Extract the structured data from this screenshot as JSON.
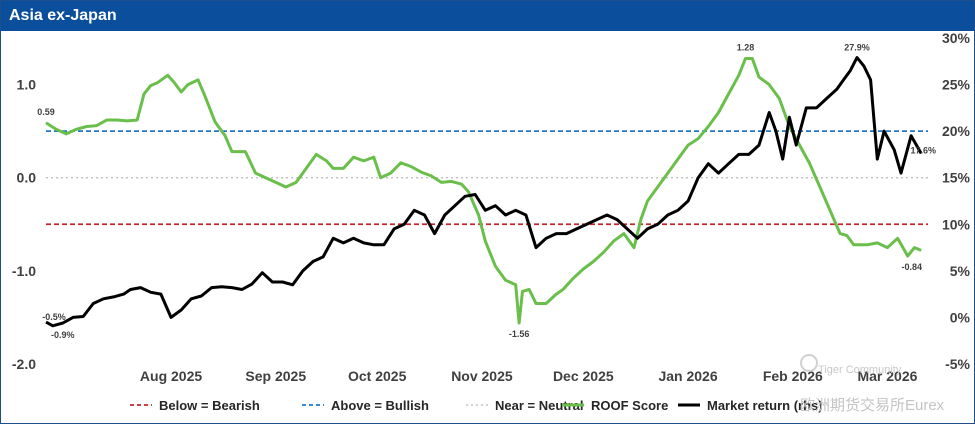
{
  "header": {
    "title": "Asia ex-Japan"
  },
  "chart_data": {
    "type": "line",
    "title": "Asia ex-Japan",
    "x_range": [
      "2025-07-09",
      "2026-03-27"
    ],
    "month_labels": [
      {
        "label": "Aug 2025",
        "date": "2025-08-15"
      },
      {
        "label": "Sep 2025",
        "date": "2025-09-15"
      },
      {
        "label": "Oct 2025",
        "date": "2025-10-15"
      },
      {
        "label": "Nov 2025",
        "date": "2025-11-15"
      },
      {
        "label": "Dec 2025",
        "date": "2025-12-15"
      },
      {
        "label": "Jan 2026",
        "date": "2026-01-15"
      },
      {
        "label": "Feb 2026",
        "date": "2026-02-15"
      },
      {
        "label": "Mar 2026",
        "date": "2026-03-15"
      }
    ],
    "left_axis": {
      "ylim": [
        -2.0,
        1.5
      ],
      "ticks": [
        1.0,
        0.0,
        -1.0,
        -2.0
      ],
      "tick_labels": [
        "1.0",
        "0.0",
        "-1.0",
        "-2.0"
      ]
    },
    "right_axis": {
      "ylim": [
        -5,
        30
      ],
      "ticks": [
        30,
        25,
        20,
        15,
        10,
        5,
        0,
        -5
      ],
      "tick_labels": [
        "30%",
        "25%",
        "20%",
        "15%",
        "10%",
        "5%",
        "0%",
        "-5%"
      ]
    },
    "thresholds": [
      {
        "name": "Below = Bearish",
        "value": -0.5,
        "color": "#c0282d",
        "style": "dashed"
      },
      {
        "name": "Above = Bullish",
        "value": 0.5,
        "color": "#1f78c8",
        "style": "dashed"
      },
      {
        "name": "Near = Neutral",
        "value": 0.0,
        "color": "#b8b8b8",
        "style": "dotted"
      }
    ],
    "series": [
      {
        "name": "ROOF Score",
        "axis": "left",
        "color": "#6abf4b",
        "points": [
          [
            "2025-07-09",
            0.59
          ],
          [
            "2025-07-12",
            0.52
          ],
          [
            "2025-07-15",
            0.47
          ],
          [
            "2025-07-18",
            0.52
          ],
          [
            "2025-07-21",
            0.55
          ],
          [
            "2025-07-24",
            0.56
          ],
          [
            "2025-07-27",
            0.62
          ],
          [
            "2025-07-30",
            0.62
          ],
          [
            "2025-08-02",
            0.61
          ],
          [
            "2025-08-05",
            0.62
          ],
          [
            "2025-08-07",
            0.9
          ],
          [
            "2025-08-09",
            0.99
          ],
          [
            "2025-08-11",
            1.02
          ],
          [
            "2025-08-14",
            1.1
          ],
          [
            "2025-08-16",
            1.02
          ],
          [
            "2025-08-18",
            0.92
          ],
          [
            "2025-08-20",
            1.0
          ],
          [
            "2025-08-23",
            1.05
          ],
          [
            "2025-08-25",
            0.88
          ],
          [
            "2025-08-28",
            0.6
          ],
          [
            "2025-08-31",
            0.45
          ],
          [
            "2025-09-02",
            0.28
          ],
          [
            "2025-09-06",
            0.28
          ],
          [
            "2025-09-09",
            0.05
          ],
          [
            "2025-09-12",
            0.0
          ],
          [
            "2025-09-15",
            -0.05
          ],
          [
            "2025-09-18",
            -0.1
          ],
          [
            "2025-09-21",
            -0.05
          ],
          [
            "2025-09-24",
            0.1
          ],
          [
            "2025-09-27",
            0.25
          ],
          [
            "2025-09-30",
            0.18
          ],
          [
            "2025-10-02",
            0.1
          ],
          [
            "2025-10-05",
            0.1
          ],
          [
            "2025-10-08",
            0.22
          ],
          [
            "2025-10-11",
            0.18
          ],
          [
            "2025-10-14",
            0.22
          ],
          [
            "2025-10-16",
            0.0
          ],
          [
            "2025-10-19",
            0.05
          ],
          [
            "2025-10-22",
            0.16
          ],
          [
            "2025-10-25",
            0.12
          ],
          [
            "2025-10-28",
            0.06
          ],
          [
            "2025-10-31",
            0.02
          ],
          [
            "2025-11-03",
            -0.05
          ],
          [
            "2025-11-06",
            -0.04
          ],
          [
            "2025-11-09",
            -0.07
          ],
          [
            "2025-11-11",
            -0.15
          ],
          [
            "2025-11-14",
            -0.4
          ],
          [
            "2025-11-16",
            -0.68
          ],
          [
            "2025-11-19",
            -0.95
          ],
          [
            "2025-11-22",
            -1.1
          ],
          [
            "2025-11-25",
            -1.15
          ],
          [
            "2025-11-26",
            -1.56
          ],
          [
            "2025-11-27",
            -1.22
          ],
          [
            "2025-11-29",
            -1.2
          ],
          [
            "2025-12-01",
            -1.35
          ],
          [
            "2025-12-04",
            -1.35
          ],
          [
            "2025-12-07",
            -1.25
          ],
          [
            "2025-12-09",
            -1.2
          ],
          [
            "2025-12-12",
            -1.08
          ],
          [
            "2025-12-15",
            -0.98
          ],
          [
            "2025-12-18",
            -0.9
          ],
          [
            "2025-12-21",
            -0.8
          ],
          [
            "2025-12-24",
            -0.68
          ],
          [
            "2025-12-27",
            -0.6
          ],
          [
            "2025-12-30",
            -0.75
          ],
          [
            "2026-01-01",
            -0.45
          ],
          [
            "2026-01-03",
            -0.25
          ],
          [
            "2026-01-06",
            -0.1
          ],
          [
            "2026-01-09",
            0.05
          ],
          [
            "2026-01-12",
            0.2
          ],
          [
            "2026-01-15",
            0.35
          ],
          [
            "2026-01-18",
            0.42
          ],
          [
            "2026-01-21",
            0.55
          ],
          [
            "2026-01-24",
            0.7
          ],
          [
            "2026-01-27",
            0.9
          ],
          [
            "2026-01-30",
            1.1
          ],
          [
            "2026-02-01",
            1.28
          ],
          [
            "2026-02-03",
            1.28
          ],
          [
            "2026-02-05",
            1.08
          ],
          [
            "2026-02-08",
            1.0
          ],
          [
            "2026-02-11",
            0.85
          ],
          [
            "2026-02-14",
            0.55
          ],
          [
            "2026-02-17",
            0.35
          ],
          [
            "2026-02-20",
            0.15
          ],
          [
            "2026-02-23",
            -0.1
          ],
          [
            "2026-02-26",
            -0.35
          ],
          [
            "2026-03-01",
            -0.6
          ],
          [
            "2026-03-03",
            -0.62
          ],
          [
            "2026-03-05",
            -0.72
          ],
          [
            "2026-03-09",
            -0.72
          ],
          [
            "2026-03-12",
            -0.7
          ],
          [
            "2026-03-15",
            -0.75
          ],
          [
            "2026-03-18",
            -0.65
          ],
          [
            "2026-03-21",
            -0.84
          ],
          [
            "2026-03-23",
            -0.75
          ],
          [
            "2026-03-25",
            -0.78
          ]
        ]
      },
      {
        "name": "Market return (rhs)",
        "axis": "right",
        "color": "#000000",
        "points": [
          [
            "2025-07-09",
            -0.5
          ],
          [
            "2025-07-11",
            -0.9
          ],
          [
            "2025-07-14",
            -0.6
          ],
          [
            "2025-07-17",
            0.0
          ],
          [
            "2025-07-20",
            0.1
          ],
          [
            "2025-07-23",
            1.5
          ],
          [
            "2025-07-26",
            2.0
          ],
          [
            "2025-07-29",
            2.2
          ],
          [
            "2025-08-01",
            2.5
          ],
          [
            "2025-08-03",
            3.0
          ],
          [
            "2025-08-06",
            3.2
          ],
          [
            "2025-08-09",
            2.7
          ],
          [
            "2025-08-12",
            2.5
          ],
          [
            "2025-08-15",
            0.0
          ],
          [
            "2025-08-18",
            0.8
          ],
          [
            "2025-08-21",
            2.0
          ],
          [
            "2025-08-24",
            2.3
          ],
          [
            "2025-08-27",
            3.2
          ],
          [
            "2025-08-30",
            3.3
          ],
          [
            "2025-09-02",
            3.2
          ],
          [
            "2025-09-05",
            3.0
          ],
          [
            "2025-09-08",
            3.6
          ],
          [
            "2025-09-11",
            4.8
          ],
          [
            "2025-09-14",
            3.8
          ],
          [
            "2025-09-17",
            3.8
          ],
          [
            "2025-09-20",
            3.5
          ],
          [
            "2025-09-23",
            5.0
          ],
          [
            "2025-09-26",
            6.0
          ],
          [
            "2025-09-29",
            6.5
          ],
          [
            "2025-10-02",
            8.5
          ],
          [
            "2025-10-05",
            8.0
          ],
          [
            "2025-10-08",
            8.5
          ],
          [
            "2025-10-11",
            8.0
          ],
          [
            "2025-10-14",
            7.8
          ],
          [
            "2025-10-17",
            7.8
          ],
          [
            "2025-10-20",
            9.5
          ],
          [
            "2025-10-23",
            10.0
          ],
          [
            "2025-10-26",
            11.5
          ],
          [
            "2025-10-29",
            11.0
          ],
          [
            "2025-11-01",
            9.0
          ],
          [
            "2025-11-04",
            11.0
          ],
          [
            "2025-11-07",
            12.0
          ],
          [
            "2025-11-10",
            13.0
          ],
          [
            "2025-11-13",
            13.2
          ],
          [
            "2025-11-16",
            11.5
          ],
          [
            "2025-11-19",
            12.0
          ],
          [
            "2025-11-22",
            11.0
          ],
          [
            "2025-11-25",
            11.5
          ],
          [
            "2025-11-28",
            11.0
          ],
          [
            "2025-12-01",
            7.5
          ],
          [
            "2025-12-04",
            8.5
          ],
          [
            "2025-12-07",
            9.0
          ],
          [
            "2025-12-10",
            9.0
          ],
          [
            "2025-12-13",
            9.5
          ],
          [
            "2025-12-16",
            10.0
          ],
          [
            "2025-12-19",
            10.5
          ],
          [
            "2025-12-22",
            11.0
          ],
          [
            "2025-12-25",
            10.5
          ],
          [
            "2025-12-28",
            9.5
          ],
          [
            "2025-12-31",
            8.5
          ],
          [
            "2026-01-03",
            9.5
          ],
          [
            "2026-01-06",
            10.0
          ],
          [
            "2026-01-09",
            11.0
          ],
          [
            "2026-01-12",
            11.5
          ],
          [
            "2026-01-15",
            12.5
          ],
          [
            "2026-01-18",
            15.0
          ],
          [
            "2026-01-21",
            16.5
          ],
          [
            "2026-01-24",
            15.5
          ],
          [
            "2026-01-27",
            16.5
          ],
          [
            "2026-01-30",
            17.5
          ],
          [
            "2026-02-02",
            17.5
          ],
          [
            "2026-02-05",
            18.5
          ],
          [
            "2026-02-08",
            22.0
          ],
          [
            "2026-02-10",
            20.0
          ],
          [
            "2026-02-12",
            17.0
          ],
          [
            "2026-02-14",
            21.5
          ],
          [
            "2026-02-16",
            18.5
          ],
          [
            "2026-02-19",
            22.5
          ],
          [
            "2026-02-22",
            22.5
          ],
          [
            "2026-02-25",
            23.5
          ],
          [
            "2026-02-28",
            24.5
          ],
          [
            "2026-03-02",
            25.5
          ],
          [
            "2026-03-04",
            26.5
          ],
          [
            "2026-03-06",
            27.9
          ],
          [
            "2026-03-08",
            27.0
          ],
          [
            "2026-03-10",
            25.5
          ],
          [
            "2026-03-12",
            17.0
          ],
          [
            "2026-03-14",
            20.0
          ],
          [
            "2026-03-17",
            18.0
          ],
          [
            "2026-03-19",
            15.5
          ],
          [
            "2026-03-22",
            19.5
          ],
          [
            "2026-03-25",
            17.6
          ]
        ]
      }
    ],
    "data_labels": [
      {
        "text": "0.59",
        "series": "ROOF Score",
        "date": "2025-07-09",
        "value": 0.59
      },
      {
        "text": "1.28",
        "series": "ROOF Score",
        "date": "2026-02-01",
        "value": 1.28
      },
      {
        "text": "-1.56",
        "series": "ROOF Score",
        "date": "2025-11-26",
        "value": -1.56
      },
      {
        "text": "-0.84",
        "series": "ROOF Score",
        "date": "2026-03-21",
        "value": -0.84
      },
      {
        "text": "-0.5%",
        "series": "Market return (rhs)",
        "date": "2025-07-09",
        "value": -0.5
      },
      {
        "text": "-0.9%",
        "series": "Market return (rhs)",
        "date": "2025-07-11",
        "value": -0.9
      },
      {
        "text": "27.9%",
        "series": "Market return (rhs)",
        "date": "2026-03-06",
        "value": 27.9
      },
      {
        "text": "17.6%",
        "series": "Market return (rhs)",
        "date": "2026-03-25",
        "value": 17.6
      }
    ],
    "legend": {
      "placement": "bottom",
      "entries": [
        "Below = Bearish",
        "Above = Bullish",
        "Near = Neutral",
        "ROOF Score",
        "Market return (rhs)"
      ]
    }
  },
  "watermark": {
    "line1": "Tiger Community",
    "line2": "欧洲期货交易所Eurex"
  }
}
